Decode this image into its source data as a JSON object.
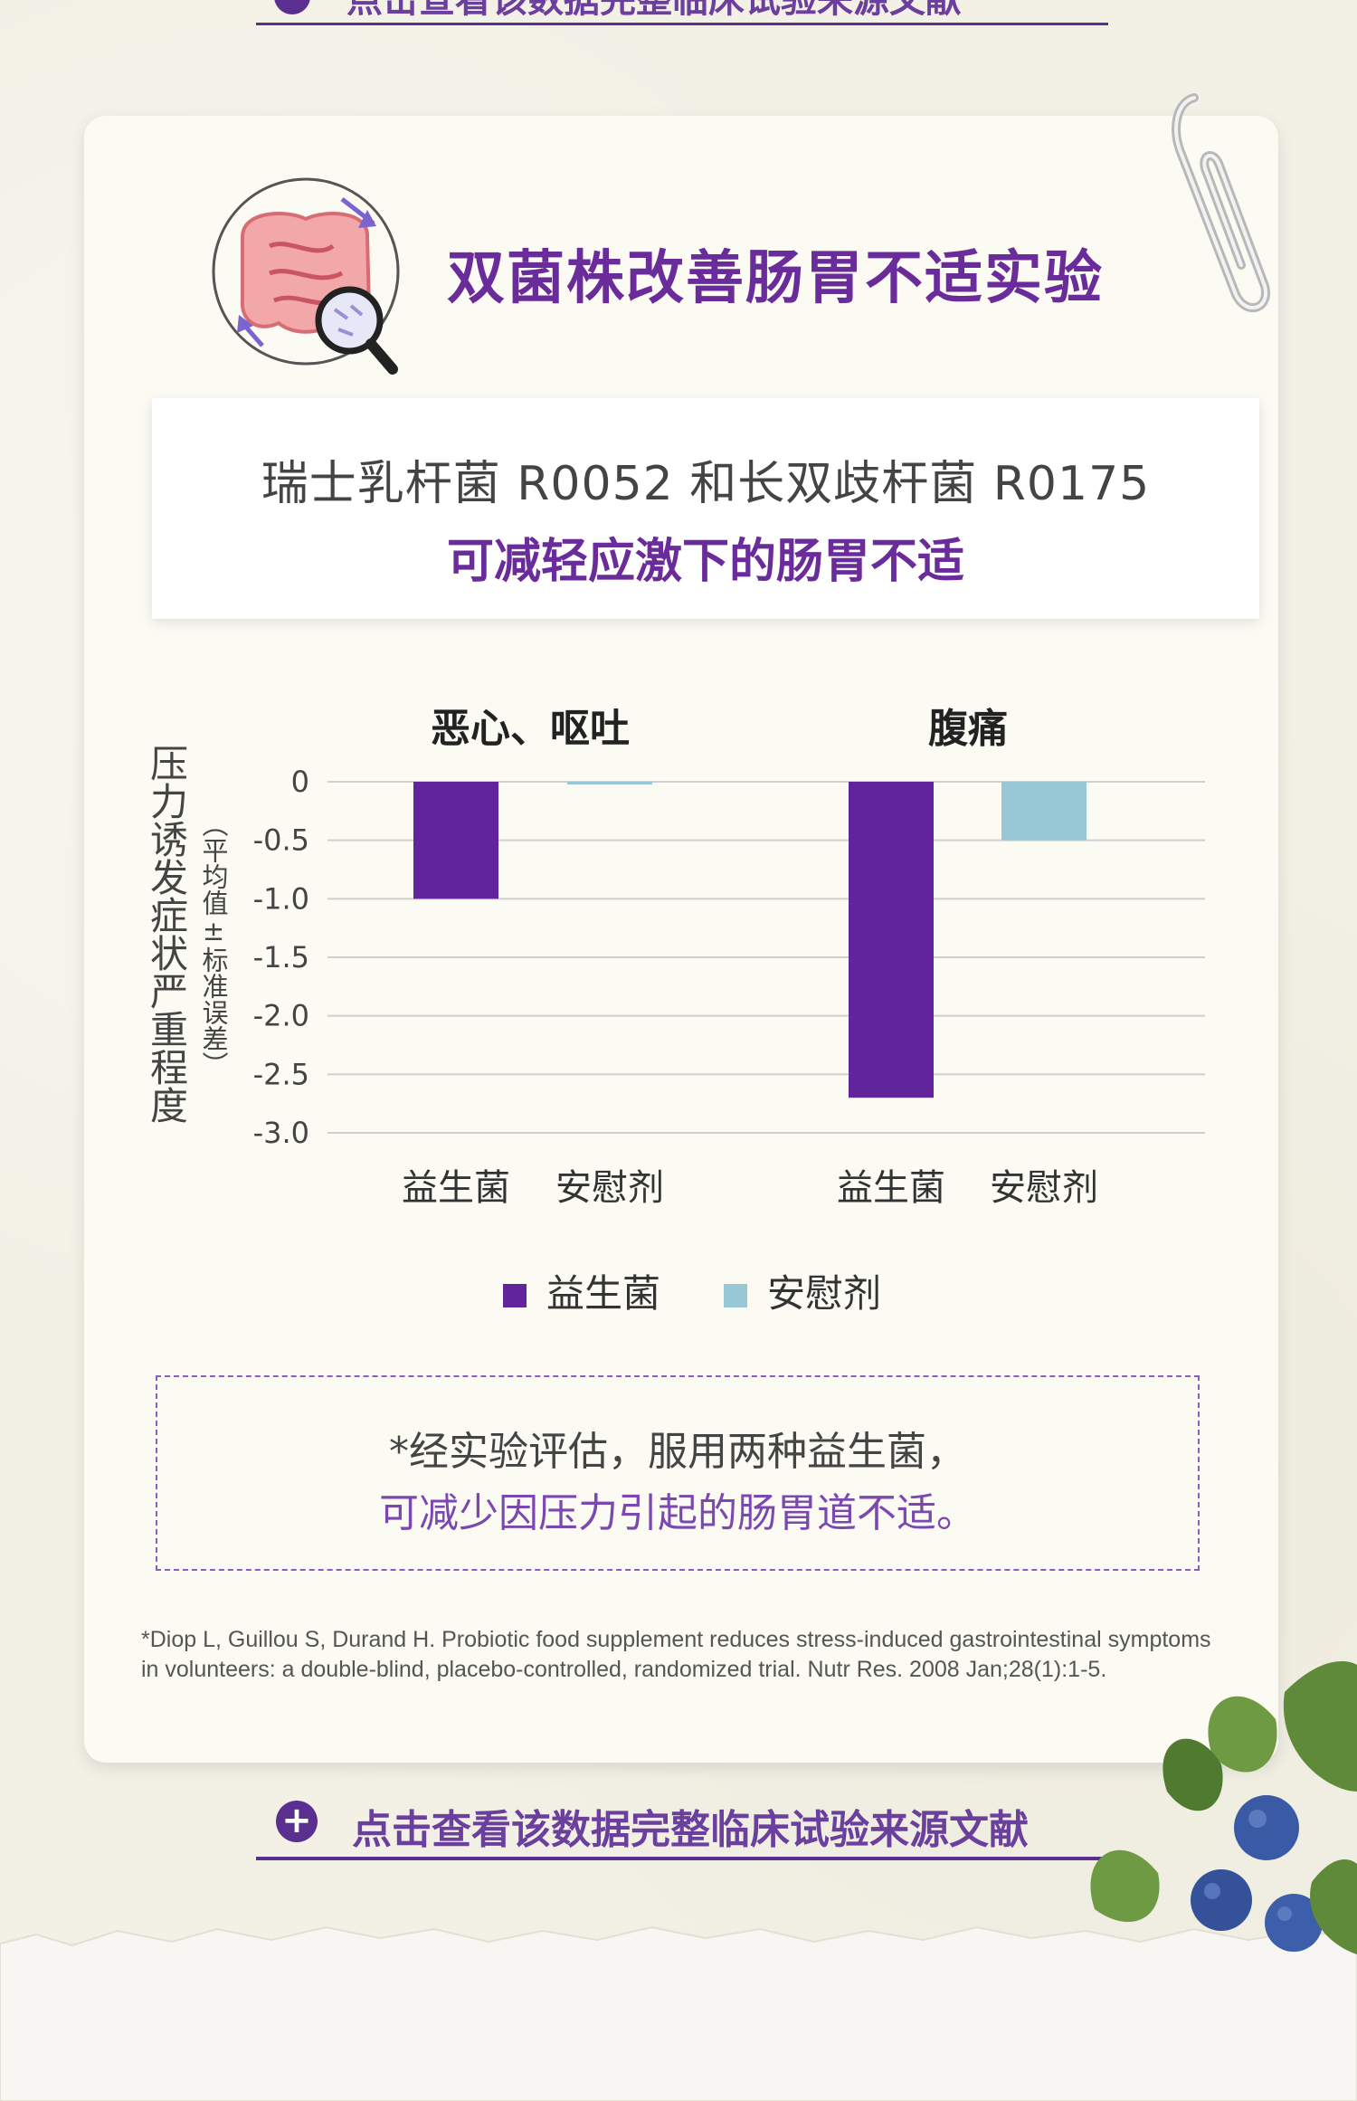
{
  "top_link": {
    "text": "点击查看该数据完整临床试验来源文献"
  },
  "card": {
    "title": "双菌株改善肠胃不适实验",
    "subtitle_line1": "瑞士乳杆菌 R0052 和长双歧杆菌 R0175",
    "subtitle_line2": "可减轻应激下的肠胃不适"
  },
  "chart_data": {
    "type": "bar",
    "groups": [
      "恶心、呕吐",
      "腹痛"
    ],
    "categories": [
      "益生菌",
      "安慰剂"
    ],
    "series": [
      {
        "name": "益生菌",
        "color": "#61249b",
        "values": [
          -1.0,
          -2.7
        ]
      },
      {
        "name": "安慰剂",
        "color": "#98c8d6",
        "values": [
          -0.02,
          -0.5
        ]
      }
    ],
    "ylabel": "压力诱发症状严重程度",
    "ylabel_sub": "（平均值±标准误差）",
    "ylim": [
      -3.0,
      0
    ],
    "yticks": [
      "0",
      "-0.5",
      "-1.0",
      "-1.5",
      "-2.0",
      "-2.5",
      "-3.0"
    ],
    "ytick_values": [
      0,
      -0.5,
      -1.0,
      -1.5,
      -2.0,
      -2.5,
      -3.0
    ],
    "grid": true,
    "legend_position": "bottom-center"
  },
  "note": {
    "line1": "*经实验评估，服用两种益生菌，",
    "line2": "可减少因压力引起的肠胃道不适。"
  },
  "reference": {
    "line1": "*Diop L, Guillou S, Durand H. Probiotic food supplement reduces stress-induced gastrointestinal symptoms",
    "line2": "in volunteers: a double-blind, placebo-controlled, randomized trial. Nutr Res. 2008 Jan;28(1):1-5."
  },
  "bottom_link": {
    "plus_symbol": "+",
    "text": "点击查看该数据完整临床试验来源文献"
  }
}
